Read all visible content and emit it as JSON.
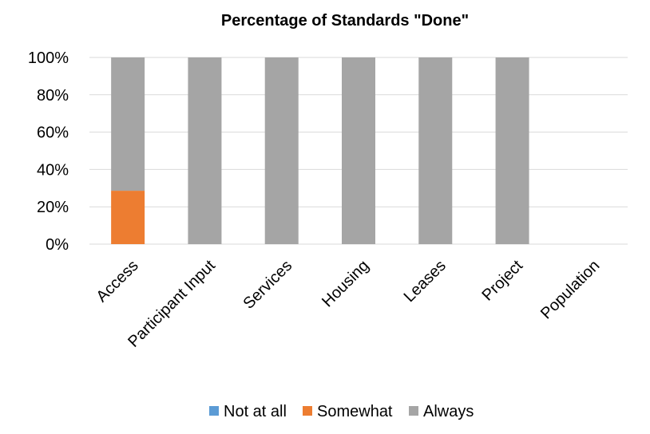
{
  "chart_data": {
    "type": "bar",
    "stacked": true,
    "percent_stacked": true,
    "title": "Percentage of Standards \"Done\"",
    "xlabel": "",
    "ylabel": "",
    "categories": [
      "Access",
      "Participant Input",
      "Services",
      "Housing",
      "Leases",
      "Project",
      "Population"
    ],
    "series": [
      {
        "name": "Not at all",
        "color": "#5b9bd5",
        "values": [
          0,
          0,
          0,
          0,
          0,
          0,
          0
        ]
      },
      {
        "name": "Somewhat",
        "color": "#ed7d31",
        "values": [
          28.6,
          0,
          0,
          0,
          0,
          0,
          0
        ]
      },
      {
        "name": "Always",
        "color": "#a5a5a5",
        "values": [
          71.4,
          100,
          100,
          100,
          100,
          100,
          0
        ]
      }
    ],
    "ylim": [
      0,
      100
    ],
    "yticks": [
      "0%",
      "20%",
      "40%",
      "60%",
      "80%",
      "100%"
    ],
    "grid": true,
    "legend_position": "bottom"
  }
}
